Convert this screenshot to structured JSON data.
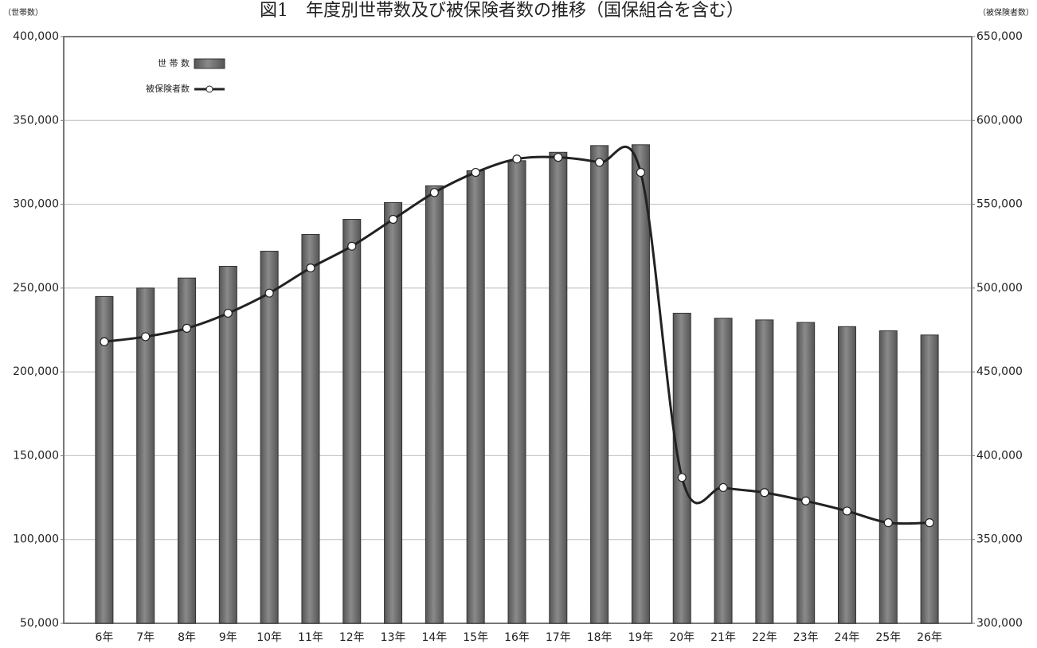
{
  "chart_data": {
    "type": "bar",
    "title": "図1　年度別世帯数及び被保険者数の推移（国保組合を含む）",
    "y_label": "（世帯数）",
    "y2_label": "（被保険者数）",
    "categories": [
      "6年",
      "7年",
      "8年",
      "9年",
      "10年",
      "11年",
      "12年",
      "13年",
      "14年",
      "15年",
      "16年",
      "17年",
      "18年",
      "19年",
      "20年",
      "21年",
      "22年",
      "23年",
      "24年",
      "25年",
      "26年"
    ],
    "series": [
      {
        "name": "世 帯 数",
        "type": "bar",
        "color": "#8a8a8a",
        "values": [
          245000,
          250000,
          256000,
          263000,
          272000,
          282000,
          291000,
          301000,
          311000,
          320000,
          326000,
          331000,
          335000,
          335500,
          235000,
          232000,
          231000,
          229500,
          227000,
          224500,
          222000
        ]
      },
      {
        "name": "被保険者数",
        "type": "line",
        "color": "#222222",
        "axis": "y2",
        "values": [
          468000,
          471000,
          476000,
          485000,
          497000,
          512000,
          525000,
          541000,
          557000,
          569000,
          577000,
          578000,
          575000,
          569000,
          387000,
          381000,
          378000,
          373000,
          367000,
          360000,
          360000
        ]
      }
    ],
    "ylim": [
      50000,
      400000
    ],
    "yticks": [
      {
        "value": 50000,
        "label": "50,000"
      },
      {
        "value": 100000,
        "label": "100,000"
      },
      {
        "value": 150000,
        "label": "150,000"
      },
      {
        "value": 200000,
        "label": "200,000"
      },
      {
        "value": 250000,
        "label": "250,000"
      },
      {
        "value": 300000,
        "label": "300,000"
      },
      {
        "value": 350000,
        "label": "350,000"
      },
      {
        "value": 400000,
        "label": "400,000"
      }
    ],
    "y2lim": [
      300000,
      650000
    ],
    "y2ticks": [
      {
        "value": 300000,
        "label": "300,000"
      },
      {
        "value": 350000,
        "label": "350,000"
      },
      {
        "value": 400000,
        "label": "400,000"
      },
      {
        "value": 450000,
        "label": "450,000"
      },
      {
        "value": 500000,
        "label": "500,000"
      },
      {
        "value": 550000,
        "label": "550,000"
      },
      {
        "value": 600000,
        "label": "600,000"
      },
      {
        "value": 650000,
        "label": "650,000"
      }
    ],
    "grid": true,
    "legend": "top-left"
  }
}
